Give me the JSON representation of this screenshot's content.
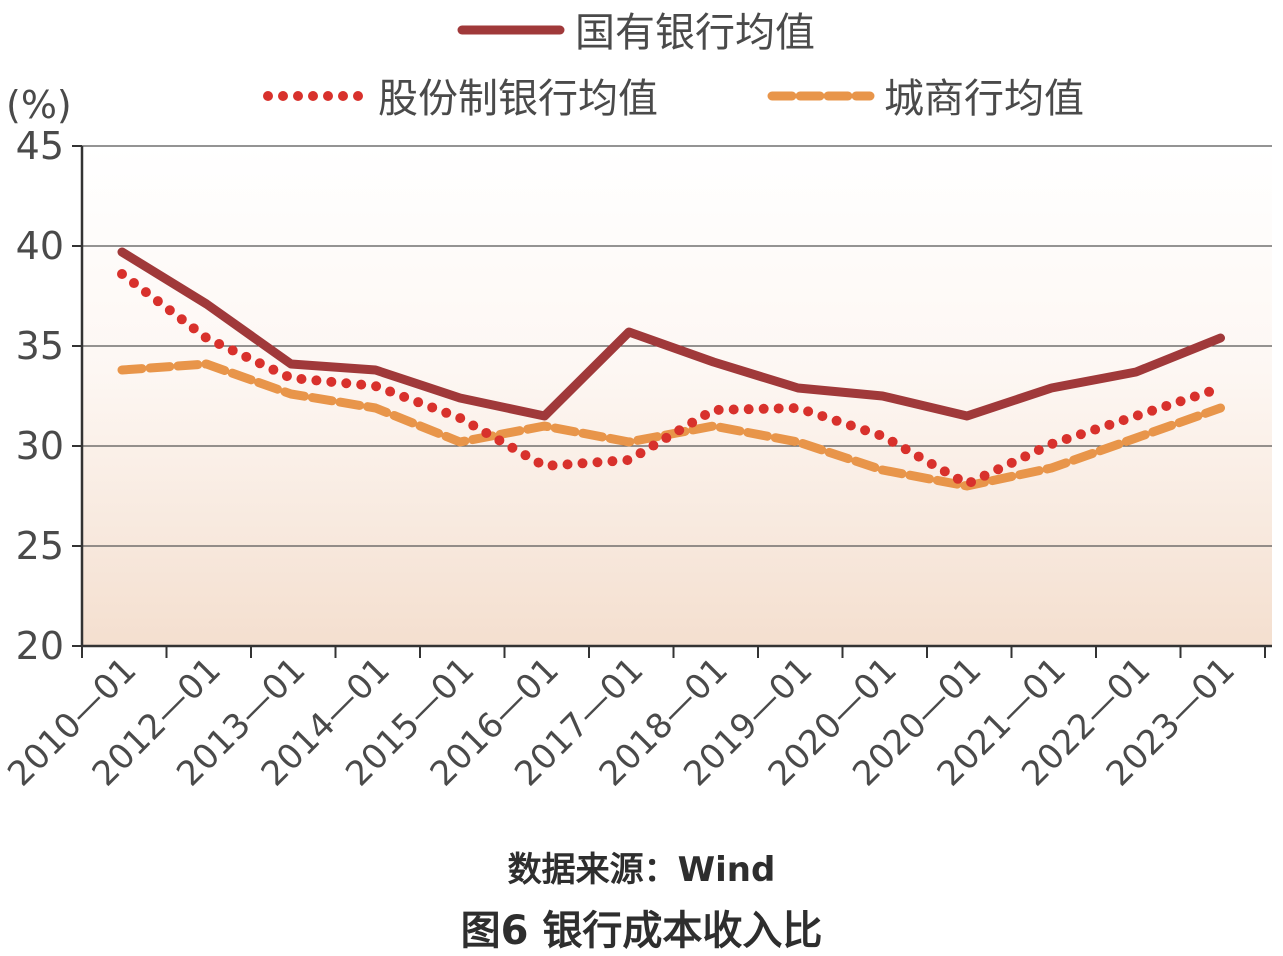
{
  "chart_data": {
    "type": "line",
    "unit_label": "(%)",
    "ylim": [
      20,
      45
    ],
    "yticks": [
      20,
      25,
      30,
      35,
      40,
      45
    ],
    "grid": true,
    "legend_position": "top",
    "categories": [
      "2010—01",
      "2012—01",
      "2013—01",
      "2014—01",
      "2015—01",
      "2016—01",
      "2017—01",
      "2018—01",
      "2019—01",
      "2020—01",
      "2020—01",
      "2021—01",
      "2022—01",
      "2023—01"
    ],
    "series": [
      {
        "name": "国有银行均值",
        "color": "#a0393a",
        "style": "solid",
        "values": [
          39.7,
          37.1,
          34.1,
          33.8,
          32.4,
          31.5,
          35.7,
          34.2,
          32.9,
          32.5,
          31.5,
          32.9,
          33.7,
          35.4
        ]
      },
      {
        "name": "股份制银行均值",
        "color": "#d8312c",
        "style": "dotted",
        "values": [
          38.6,
          35.4,
          33.4,
          33.0,
          31.4,
          29.0,
          29.3,
          31.8,
          31.9,
          30.5,
          28.1,
          30.1,
          31.5,
          32.9
        ]
      },
      {
        "name": "城商行均值",
        "color": "#e8954a",
        "style": "dashed",
        "values": [
          33.8,
          34.1,
          32.6,
          31.9,
          30.2,
          31.0,
          30.2,
          31.0,
          30.2,
          28.8,
          28.0,
          28.9,
          30.4,
          31.9
        ]
      }
    ]
  },
  "footer": {
    "source": "数据来源：Wind",
    "caption": "图6  银行成本收入比"
  }
}
